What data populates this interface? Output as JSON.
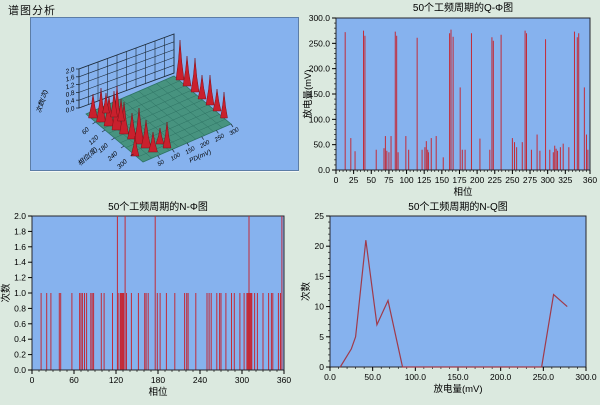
{
  "page": {
    "background": "#dbe9df",
    "panel_label": "谱图分析"
  },
  "colors": {
    "page_bg": "#dbe9df",
    "plot_bg": "#86b2ee",
    "plot_border": "#26262e",
    "stem_red": "#c32b38",
    "line_red": "#a03a4a",
    "floor": "#47937f",
    "floor_grid": "#2d7263",
    "wall": "#1c2a38",
    "peak": "#c9202d",
    "peak_dark": "#7c1018",
    "axis_text": "#000000"
  },
  "chart_data": [
    {
      "id": "waterfall",
      "type": "3d-waterfall",
      "title": "谱图分析",
      "axes": {
        "z": {
          "label": "次数(次)",
          "ticks": [
            "2.0",
            "1.6",
            "1.2",
            "0.8",
            "0.4",
            "0.0"
          ]
        },
        "phase": {
          "label": "相位(度)",
          "ticks": [
            "60",
            "120",
            "180",
            "240",
            "300"
          ]
        },
        "pd": {
          "label": "PD(mV)",
          "ticks": [
            "50",
            "100",
            "150",
            "200",
            "250",
            "300"
          ]
        }
      },
      "peaks": [
        {
          "x": 62,
          "y": 100,
          "w": 9,
          "h": 24
        },
        {
          "x": 70,
          "y": 104,
          "w": 9,
          "h": 34
        },
        {
          "x": 78,
          "y": 108,
          "w": 10,
          "h": 30
        },
        {
          "x": 86,
          "y": 112,
          "w": 10,
          "h": 44
        },
        {
          "x": 93,
          "y": 116,
          "w": 9,
          "h": 32
        },
        {
          "x": 75,
          "y": 95,
          "w": 7,
          "h": 20
        },
        {
          "x": 83,
          "y": 99,
          "w": 7,
          "h": 26
        },
        {
          "x": 90,
          "y": 103,
          "w": 7,
          "h": 22
        },
        {
          "x": 101,
          "y": 121,
          "w": 9,
          "h": 26
        },
        {
          "x": 108,
          "y": 126,
          "w": 10,
          "h": 36
        },
        {
          "x": 115,
          "y": 130,
          "w": 10,
          "h": 28
        },
        {
          "x": 122,
          "y": 134,
          "w": 9,
          "h": 20
        },
        {
          "x": 129,
          "y": 126,
          "w": 8,
          "h": 16
        },
        {
          "x": 136,
          "y": 130,
          "w": 8,
          "h": 26
        },
        {
          "x": 104,
          "y": 138,
          "w": 8,
          "h": 20
        },
        {
          "x": 149,
          "y": 62,
          "w": 8,
          "h": 40
        },
        {
          "x": 156,
          "y": 68,
          "w": 8,
          "h": 30
        },
        {
          "x": 164,
          "y": 74,
          "w": 8,
          "h": 34
        },
        {
          "x": 171,
          "y": 81,
          "w": 8,
          "h": 24
        },
        {
          "x": 179,
          "y": 87,
          "w": 8,
          "h": 30
        },
        {
          "x": 186,
          "y": 93,
          "w": 8,
          "h": 22
        },
        {
          "x": 193,
          "y": 100,
          "w": 7,
          "h": 26
        }
      ]
    },
    {
      "id": "q_phi",
      "type": "stem",
      "title": "50个工频周期的Q-Φ图",
      "xlabel": "相位",
      "ylabel": "放电量(mV)",
      "xlim": [
        0,
        360
      ],
      "ylim": [
        0,
        300
      ],
      "x_ticks": {
        "values": [
          0,
          25,
          50,
          75,
          100,
          125,
          150,
          175,
          200,
          225,
          250,
          275,
          300,
          325,
          360
        ],
        "labels": [
          "0",
          "25",
          "50",
          "75",
          "100",
          "125",
          "150",
          "175",
          "200",
          "225",
          "250",
          "275",
          "300",
          "325",
          "360"
        ]
      },
      "y_ticks": {
        "values": [
          0,
          50,
          100,
          150,
          200,
          250,
          300
        ],
        "labels": [
          "0.0",
          "50.0",
          "100.0",
          "150.0",
          "200.0",
          "250.0",
          "300.0"
        ]
      },
      "x_minor_step": 5,
      "y_minor_step": 10,
      "points": [
        [
          13,
          272
        ],
        [
          21,
          63
        ],
        [
          27,
          37
        ],
        [
          39,
          275
        ],
        [
          41,
          265
        ],
        [
          57,
          40
        ],
        [
          68,
          43
        ],
        [
          70,
          67
        ],
        [
          72,
          38
        ],
        [
          75,
          35
        ],
        [
          78,
          67
        ],
        [
          84,
          273
        ],
        [
          86,
          265
        ],
        [
          88,
          35
        ],
        [
          99,
          67
        ],
        [
          103,
          40
        ],
        [
          115,
          261
        ],
        [
          122,
          40
        ],
        [
          126,
          45
        ],
        [
          128,
          57
        ],
        [
          130,
          40
        ],
        [
          131,
          35
        ],
        [
          135,
          63
        ],
        [
          142,
          67
        ],
        [
          152,
          25
        ],
        [
          161,
          270
        ],
        [
          163,
          277
        ],
        [
          166,
          263
        ],
        [
          176,
          163
        ],
        [
          179,
          40
        ],
        [
          183,
          40
        ],
        [
          192,
          270
        ],
        [
          204,
          62
        ],
        [
          218,
          40
        ],
        [
          221,
          262
        ],
        [
          223,
          255
        ],
        [
          234,
          267
        ],
        [
          250,
          63
        ],
        [
          253,
          55
        ],
        [
          256,
          45
        ],
        [
          264,
          55
        ],
        [
          268,
          275
        ],
        [
          270,
          270
        ],
        [
          277,
          40
        ],
        [
          285,
          70
        ],
        [
          289,
          38
        ],
        [
          297,
          258
        ],
        [
          303,
          40
        ],
        [
          308,
          35
        ],
        [
          310,
          48
        ],
        [
          312,
          42
        ],
        [
          314,
          38
        ],
        [
          318,
          45
        ],
        [
          322,
          52
        ],
        [
          330,
          45
        ],
        [
          338,
          273
        ],
        [
          342,
          262
        ],
        [
          344,
          270
        ],
        [
          352,
          163
        ],
        [
          355,
          70
        ],
        [
          357,
          40
        ]
      ]
    },
    {
      "id": "n_phi",
      "type": "stem",
      "title": "50个工频周期的N-Φ图",
      "xlabel": "相位",
      "ylabel": "次数",
      "xlim": [
        0,
        360
      ],
      "ylim": [
        0,
        2
      ],
      "x_ticks": {
        "values": [
          0,
          60,
          120,
          180,
          240,
          300,
          360
        ],
        "labels": [
          "0",
          "60",
          "120",
          "180",
          "240",
          "300",
          "360"
        ]
      },
      "y_ticks": {
        "values": [
          0,
          0.2,
          0.4,
          0.6,
          0.8,
          1.0,
          1.2,
          1.4,
          1.6,
          1.8,
          2.0
        ],
        "labels": [
          "0.0",
          "0.2",
          "0.4",
          "0.6",
          "0.8",
          "1.0",
          "1.2",
          "1.4",
          "1.6",
          "1.8",
          "2.0"
        ]
      },
      "x_minor_step": 10,
      "points": [
        [
          13,
          1
        ],
        [
          21,
          1
        ],
        [
          27,
          1
        ],
        [
          39,
          1
        ],
        [
          41,
          1
        ],
        [
          57,
          1
        ],
        [
          68,
          1
        ],
        [
          70,
          1
        ],
        [
          72,
          1
        ],
        [
          75,
          1
        ],
        [
          78,
          1
        ],
        [
          84,
          1
        ],
        [
          86,
          1
        ],
        [
          88,
          1
        ],
        [
          99,
          1
        ],
        [
          103,
          1
        ],
        [
          115,
          1
        ],
        [
          122,
          2
        ],
        [
          123,
          1
        ],
        [
          126,
          1
        ],
        [
          127,
          1
        ],
        [
          128,
          1
        ],
        [
          129,
          1
        ],
        [
          130,
          1
        ],
        [
          131,
          1
        ],
        [
          133,
          2
        ],
        [
          135,
          1
        ],
        [
          142,
          1
        ],
        [
          152,
          1
        ],
        [
          161,
          1
        ],
        [
          163,
          1
        ],
        [
          166,
          1
        ],
        [
          176,
          2
        ],
        [
          179,
          1
        ],
        [
          183,
          1
        ],
        [
          192,
          1
        ],
        [
          204,
          1
        ],
        [
          218,
          1
        ],
        [
          221,
          1
        ],
        [
          223,
          1
        ],
        [
          234,
          1
        ],
        [
          250,
          1
        ],
        [
          253,
          1
        ],
        [
          256,
          1
        ],
        [
          264,
          1
        ],
        [
          268,
          1
        ],
        [
          270,
          1
        ],
        [
          277,
          1
        ],
        [
          285,
          1
        ],
        [
          289,
          1
        ],
        [
          297,
          1
        ],
        [
          303,
          1
        ],
        [
          307,
          1
        ],
        [
          308,
          1
        ],
        [
          309,
          1
        ],
        [
          310,
          2
        ],
        [
          311,
          1
        ],
        [
          312,
          1
        ],
        [
          313,
          1
        ],
        [
          314,
          1
        ],
        [
          318,
          1
        ],
        [
          322,
          1
        ],
        [
          330,
          1
        ],
        [
          338,
          1
        ],
        [
          342,
          1
        ],
        [
          344,
          1
        ],
        [
          352,
          1
        ],
        [
          355,
          1
        ],
        [
          357,
          2
        ]
      ]
    },
    {
      "id": "n_q",
      "type": "line",
      "title": "50个工频周期的N-Q图",
      "xlabel": "放电量(mV)",
      "ylabel": "次数",
      "xlim": [
        0,
        300
      ],
      "ylim": [
        0,
        25
      ],
      "x_ticks": {
        "values": [
          0,
          50,
          100,
          150,
          200,
          250,
          300
        ],
        "labels": [
          "0.0",
          "50.0",
          "100.0",
          "150.0",
          "200.0",
          "250.0",
          "300.0"
        ]
      },
      "y_ticks": {
        "values": [
          0,
          5,
          10,
          15,
          20,
          25
        ],
        "labels": [
          "0",
          "5",
          "10",
          "15",
          "20",
          "25"
        ]
      },
      "x_minor_step": 10,
      "y_minor_step": 1,
      "points": [
        [
          12,
          0
        ],
        [
          25,
          3
        ],
        [
          30,
          5
        ],
        [
          42,
          21
        ],
        [
          55,
          7
        ],
        [
          68,
          11
        ],
        [
          85,
          0
        ],
        [
          248,
          0
        ],
        [
          262,
          12
        ],
        [
          278,
          10
        ]
      ]
    }
  ]
}
